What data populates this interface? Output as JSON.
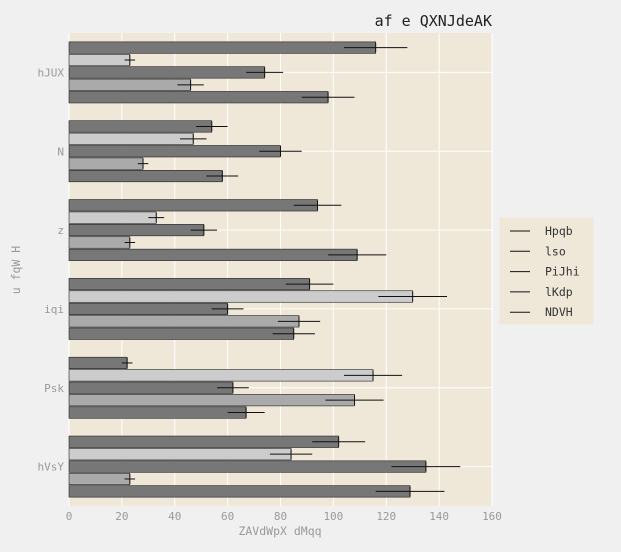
{
  "chart_data": {
    "type": "bar",
    "orientation": "horizontal",
    "title": "af e QXNJdeAK",
    "xlabel": "ZAVdWpX dMqq",
    "ylabel": "u fqW H",
    "xlim": [
      0,
      160
    ],
    "xticks": [
      0,
      20,
      40,
      60,
      80,
      100,
      120,
      140,
      160
    ],
    "grid": true,
    "legend_position": "right",
    "categories": [
      "hJUX",
      "N",
      "z",
      "iqi",
      "Psk",
      "hVsY"
    ],
    "series": [
      {
        "name": "Hpqb",
        "color": "#777777",
        "values": [
          116,
          54,
          94,
          91,
          22,
          102
        ],
        "errors": [
          12,
          6,
          9,
          9,
          2,
          10
        ]
      },
      {
        "name": "lso",
        "color": "#cccccc",
        "values": [
          23,
          47,
          33,
          130,
          115,
          84
        ],
        "errors": [
          2,
          5,
          3,
          13,
          11,
          8
        ]
      },
      {
        "name": "PiJhi",
        "color": "#777777",
        "values": [
          74,
          80,
          51,
          60,
          62,
          135
        ],
        "errors": [
          7,
          8,
          5,
          6,
          6,
          13
        ]
      },
      {
        "name": "lKdp",
        "color": "#aaaaaa",
        "values": [
          46,
          28,
          23,
          87,
          108,
          23
        ],
        "errors": [
          5,
          2,
          2,
          8,
          11,
          2
        ]
      },
      {
        "name": "NDVH",
        "color": "#777777",
        "values": [
          98,
          58,
          109,
          85,
          67,
          129
        ],
        "errors": [
          10,
          6,
          11,
          8,
          7,
          13
        ]
      }
    ]
  }
}
